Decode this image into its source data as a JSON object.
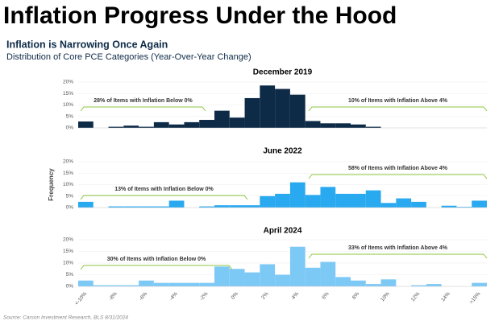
{
  "header": {
    "title": "Inflation Progress Under the Hood",
    "subtitle": "Inflation is Narrowing Once Again",
    "description": "Distribution of Core PCE Categories (Year-Over-Year Change)"
  },
  "chart_data": [
    {
      "type": "bar",
      "title": "December 2019",
      "color": "#0d2a47",
      "grid": true,
      "values": [
        2.8,
        0,
        0.5,
        1,
        0.5,
        2.5,
        1.5,
        2.5,
        3.5,
        7.5,
        4.5,
        13,
        18.5,
        17,
        14.5,
        3,
        2,
        2,
        1.5,
        0.5,
        0,
        0,
        0,
        0,
        0,
        0,
        0
      ],
      "ylim": [
        0,
        20
      ],
      "yticks": [
        {
          "value": 0,
          "label": "0%"
        },
        {
          "value": 5,
          "label": "5%"
        },
        {
          "value": 10,
          "label": "10%"
        },
        {
          "value": 15,
          "label": "15%"
        },
        {
          "value": 20,
          "label": "20%"
        }
      ],
      "annotations": [
        "28% of Items with Inflation Below 0%",
        "10% of Items with Inflation Above 4%"
      ]
    },
    {
      "type": "bar",
      "title": "June 2022",
      "color": "#29a9f0",
      "grid": true,
      "ylabel": "Frequency",
      "values": [
        2.5,
        0,
        0.5,
        0.5,
        0.5,
        0.5,
        3,
        0,
        0.5,
        1,
        1,
        1,
        5,
        6,
        11,
        5.5,
        9,
        6,
        6,
        7.5,
        2,
        4,
        2.5,
        0,
        0.8,
        0.3,
        3
      ],
      "ylim": [
        0,
        20
      ],
      "yticks": [
        {
          "value": 0,
          "label": "0%"
        },
        {
          "value": 5,
          "label": "5%"
        },
        {
          "value": 10,
          "label": "10%"
        },
        {
          "value": 15,
          "label": "15%"
        },
        {
          "value": 20,
          "label": "20%"
        }
      ],
      "annotations": [
        "13% of Items with Inflation Below 0%",
        "58% of Items with Inflation Above 4%"
      ]
    },
    {
      "type": "bar",
      "title": "April 2024",
      "color": "#7dc9f6",
      "grid": true,
      "categories": [
        "<-10%",
        null,
        "-8%",
        null,
        "-6%",
        null,
        "-4%",
        null,
        "-2%",
        null,
        "0%",
        null,
        "2%",
        null,
        "4%",
        null,
        "6%",
        null,
        "8%",
        null,
        "10%",
        null,
        "12%",
        null,
        "14%",
        null,
        ">15%"
      ],
      "values": [
        2.5,
        0.5,
        0.5,
        0.5,
        2.5,
        1.5,
        1.5,
        1.5,
        1.5,
        8.5,
        7.5,
        6,
        9.5,
        5,
        17,
        8,
        10.5,
        4,
        2.5,
        1,
        3,
        0,
        0.5,
        1,
        0,
        0,
        1.5
      ],
      "ylim": [
        0,
        20
      ],
      "yticks": [
        {
          "value": 0,
          "label": "0%"
        },
        {
          "value": 5,
          "label": "5%"
        },
        {
          "value": 10,
          "label": "10%"
        },
        {
          "value": 15,
          "label": "15%"
        },
        {
          "value": 20,
          "label": "20%"
        }
      ],
      "annotations": [
        "30% of Items with Inflation Below 0%",
        "33% of Items with Inflation Above 4%"
      ]
    }
  ],
  "source": "Source: Carson Investment Research, BLS 8/31/2024"
}
